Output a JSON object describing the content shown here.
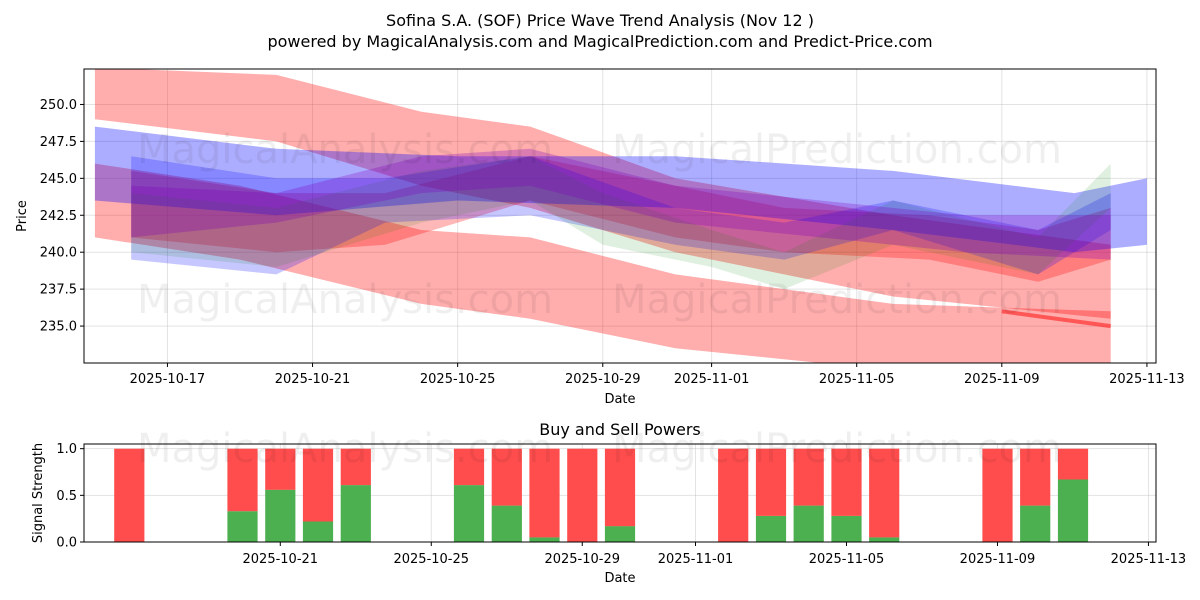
{
  "title": "Sofina S.A. (SOF) Price Wave Trend Analysis (Nov 12 )",
  "subtitle": "powered by MagicalAnalysis.com and MagicalPrediction.com and Predict-Price.com",
  "watermarks": [
    "MagicalAnalysis.com",
    "MagicalPrediction.com"
  ],
  "colors": {
    "red": "#ff0000",
    "blue": "#0000ff",
    "green": "#008000",
    "purple": "#8000c0",
    "buy": "#4caf50",
    "sell": "#ff4d4d"
  },
  "chart_data": [
    {
      "type": "line",
      "title": "",
      "xlabel": "Date",
      "ylabel": "Price",
      "x_range": [
        "2025-10-15",
        "2025-11-13"
      ],
      "ylim": [
        232.5,
        252.4
      ],
      "x_ticks": [
        "2025-10-17",
        "2025-10-21",
        "2025-10-25",
        "2025-10-29",
        "2025-11-01",
        "2025-11-05",
        "2025-11-09",
        "2025-11-13"
      ],
      "y_ticks": [
        235.0,
        237.5,
        240.0,
        242.5,
        245.0,
        247.5,
        250.0
      ],
      "grid": true,
      "bands": [
        {
          "name": "red-upper",
          "color": "red",
          "opacity": 0.32,
          "x": [
            "2025-10-15",
            "2025-10-20",
            "2025-10-24",
            "2025-10-27",
            "2025-10-31",
            "2025-11-06",
            "2025-11-12"
          ],
          "low": [
            249.0,
            247.5,
            244.5,
            243.0,
            240.0,
            237.0,
            235.5
          ],
          "high": [
            252.5,
            252.0,
            249.5,
            248.5,
            245.0,
            242.5,
            240.5
          ]
        },
        {
          "name": "red-lower",
          "color": "red",
          "opacity": 0.32,
          "x": [
            "2025-10-15",
            "2025-10-19",
            "2025-10-24",
            "2025-10-27",
            "2025-10-31",
            "2025-11-06",
            "2025-11-12"
          ],
          "low": [
            241.0,
            239.5,
            236.5,
            235.5,
            233.5,
            232.0,
            232.0
          ],
          "high": [
            246.0,
            244.5,
            241.5,
            241.0,
            238.5,
            236.5,
            236.0
          ]
        },
        {
          "name": "red-mid",
          "color": "red",
          "opacity": 0.28,
          "x": [
            "2025-10-16",
            "2025-10-20",
            "2025-10-23",
            "2025-10-27",
            "2025-10-31",
            "2025-11-03",
            "2025-11-07",
            "2025-11-10",
            "2025-11-12"
          ],
          "low": [
            241.0,
            240.0,
            240.5,
            243.5,
            241.0,
            240.0,
            239.5,
            238.0,
            239.5
          ],
          "high": [
            245.5,
            244.0,
            244.0,
            246.5,
            244.5,
            243.0,
            242.5,
            241.5,
            243.0
          ]
        },
        {
          "name": "blue-upper",
          "color": "blue",
          "opacity": 0.32,
          "x": [
            "2025-10-15",
            "2025-10-20",
            "2025-10-25",
            "2025-10-31",
            "2025-11-06",
            "2025-11-11",
            "2025-11-13"
          ],
          "low": [
            243.5,
            242.5,
            243.5,
            243.0,
            241.5,
            240.0,
            240.5
          ],
          "high": [
            248.5,
            247.0,
            246.5,
            246.5,
            245.5,
            244.0,
            245.0
          ]
        },
        {
          "name": "blue-lower",
          "color": "blue",
          "opacity": 0.22,
          "x": [
            "2025-10-16",
            "2025-10-20",
            "2025-10-23",
            "2025-10-27",
            "2025-10-31",
            "2025-11-03",
            "2025-11-06",
            "2025-11-10",
            "2025-11-12"
          ],
          "low": [
            239.5,
            238.5,
            242.0,
            242.5,
            240.5,
            239.5,
            241.5,
            238.5,
            241.5
          ],
          "high": [
            246.5,
            245.0,
            245.0,
            246.5,
            243.0,
            242.0,
            243.5,
            241.5,
            244.0
          ]
        },
        {
          "name": "green",
          "color": "green",
          "opacity": 0.12,
          "x": [
            "2025-10-16",
            "2025-10-20",
            "2025-10-24",
            "2025-10-27",
            "2025-10-29",
            "2025-11-01",
            "2025-11-03",
            "2025-11-06",
            "2025-11-10",
            "2025-11-12"
          ],
          "low": [
            240.0,
            239.0,
            242.0,
            243.5,
            240.5,
            239.0,
            237.5,
            240.5,
            238.5,
            243.0
          ],
          "high": [
            244.0,
            243.0,
            245.5,
            246.5,
            244.0,
            241.5,
            240.0,
            243.5,
            241.0,
            246.0
          ]
        },
        {
          "name": "purple",
          "color": "purple",
          "opacity": 0.28,
          "x": [
            "2025-10-16",
            "2025-10-20",
            "2025-10-24",
            "2025-10-27",
            "2025-10-31",
            "2025-11-04",
            "2025-11-08",
            "2025-11-12"
          ],
          "low": [
            241.0,
            242.0,
            244.0,
            244.5,
            242.0,
            241.0,
            240.0,
            239.5
          ],
          "high": [
            244.5,
            244.0,
            246.5,
            247.0,
            244.5,
            243.5,
            242.5,
            242.5
          ]
        }
      ],
      "lines": [
        {
          "name": "red-trend",
          "color": "red",
          "opacity": 0.5,
          "x": [
            "2025-11-09",
            "2025-11-12"
          ],
          "y": [
            236.0,
            235.0
          ]
        }
      ]
    },
    {
      "type": "bar",
      "title": "Buy and Sell Powers",
      "xlabel": "Date",
      "ylabel": "Signal Strength",
      "ylim": [
        0,
        1.05
      ],
      "y_ticks": [
        0.0,
        0.5,
        1.0
      ],
      "x_range": [
        "2025-10-16",
        "2025-11-13"
      ],
      "x_ticks": [
        "2025-10-21",
        "2025-10-25",
        "2025-10-29",
        "2025-11-01",
        "2025-11-05",
        "2025-11-09",
        "2025-11-13"
      ],
      "dates": [
        "2025-10-17",
        "2025-10-20",
        "2025-10-21",
        "2025-10-22",
        "2025-10-23",
        "2025-10-26",
        "2025-10-27",
        "2025-10-28",
        "2025-10-29",
        "2025-10-30",
        "2025-11-02",
        "2025-11-03",
        "2025-11-04",
        "2025-11-05",
        "2025-11-06",
        "2025-11-09",
        "2025-11-10",
        "2025-11-11"
      ],
      "series": [
        {
          "name": "Buy",
          "color": "buy",
          "values": [
            0.0,
            0.33,
            0.56,
            0.22,
            0.61,
            0.61,
            0.39,
            0.05,
            0.0,
            0.17,
            0.0,
            0.28,
            0.39,
            0.28,
            0.05,
            0.0,
            0.39,
            0.67
          ]
        },
        {
          "name": "Sell",
          "color": "sell",
          "values": [
            1.0,
            0.67,
            0.44,
            0.78,
            0.39,
            0.39,
            0.61,
            0.95,
            1.0,
            0.83,
            1.0,
            0.72,
            0.61,
            0.72,
            0.95,
            1.0,
            0.61,
            0.33
          ]
        }
      ]
    }
  ]
}
